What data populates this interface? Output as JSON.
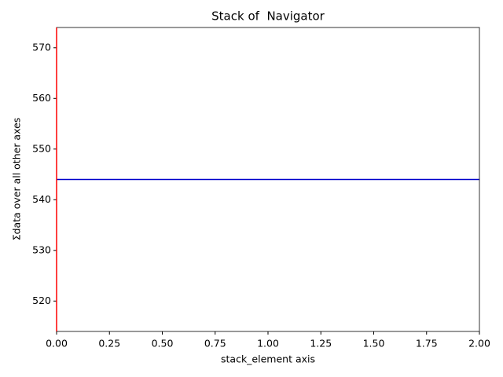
{
  "chart_data": {
    "type": "line",
    "title": "Stack of  Navigator",
    "x_label": "stack_element axis",
    "y_label": "Σdata over all other axes",
    "x": [
      0,
      2
    ],
    "series": [
      {
        "color": "#0000cc",
        "values": [
          544,
          544
        ]
      }
    ],
    "vline": {
      "x": 0,
      "color": "red"
    },
    "xlim": [
      0,
      2
    ],
    "ylim": [
      514,
      574
    ],
    "xticks": [
      {
        "value": 0,
        "label": "0.00"
      },
      {
        "value": 0.25,
        "label": "0.25"
      },
      {
        "value": 0.5,
        "label": "0.50"
      },
      {
        "value": 0.75,
        "label": "0.75"
      },
      {
        "value": 1,
        "label": "1.00"
      },
      {
        "value": 1.25,
        "label": "1.25"
      },
      {
        "value": 1.5,
        "label": "1.50"
      },
      {
        "value": 1.75,
        "label": "1.75"
      },
      {
        "value": 2,
        "label": "2.00"
      }
    ],
    "yticks": [
      520,
      530,
      540,
      550,
      560,
      570
    ]
  }
}
